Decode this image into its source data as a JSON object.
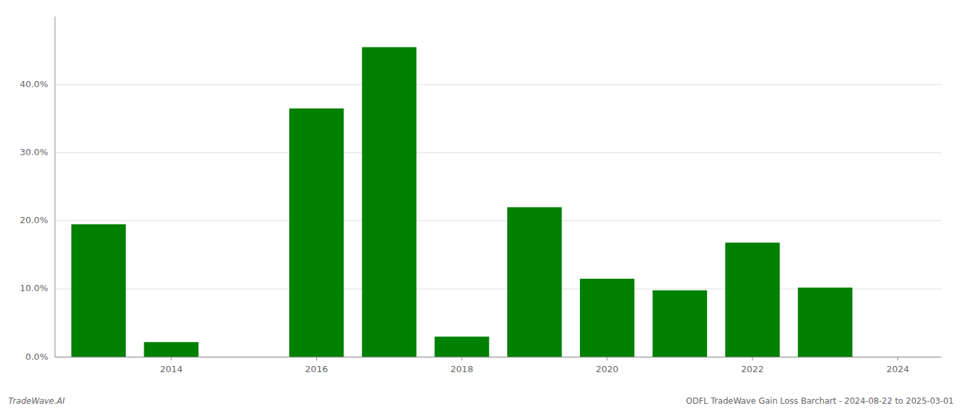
{
  "chart_data": {
    "type": "bar",
    "x": [
      2013,
      2014,
      2015,
      2016,
      2017,
      2018,
      2019,
      2020,
      2021,
      2022,
      2023,
      2024
    ],
    "values": [
      0.195,
      0.022,
      0.0,
      0.365,
      0.455,
      0.03,
      0.22,
      0.115,
      0.098,
      0.168,
      0.102,
      0.0
    ],
    "color": "#008000",
    "xlim": [
      2012.4,
      2024.6
    ],
    "xticks": [
      2014,
      2016,
      2018,
      2020,
      2022,
      2024
    ],
    "ylim": [
      0.0,
      0.5
    ],
    "yticks": [
      {
        "value": 0.0,
        "label": "0.0%"
      },
      {
        "value": 0.1,
        "label": "10.0%"
      },
      {
        "value": 0.2,
        "label": "20.0%"
      },
      {
        "value": 0.3,
        "label": "30.0%"
      },
      {
        "value": 0.4,
        "label": "40.0%"
      }
    ],
    "grid": true,
    "annotations": [
      "TradeWave.AI",
      "ODFL TradeWave Gain Loss Barchart - 2024-08-22 to 2025-03-01"
    ]
  }
}
